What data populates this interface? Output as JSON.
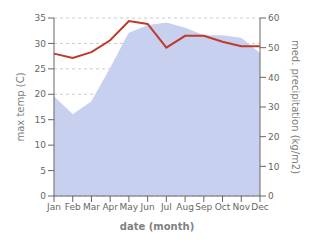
{
  "chart_data": {
    "type": "area",
    "xlabel": "date (month)",
    "ylabel": "max temp (C)",
    "y2label": "med. precipitation (kg/m2)",
    "categories": [
      "Jan",
      "Feb",
      "Mar",
      "Apr",
      "May",
      "Jun",
      "Jul",
      "Aug",
      "Sep",
      "Oct",
      "Nov",
      "Dec"
    ],
    "series": [
      {
        "type": "area",
        "color": "#c8d0f0",
        "values": [
          19.5,
          16.0,
          18.5,
          25.0,
          32.0,
          33.5,
          34.0,
          33.0,
          31.5,
          31.5,
          31.0,
          28.0
        ]
      },
      {
        "type": "line",
        "axis": "y2",
        "color": "#c0392b",
        "values": [
          48.0,
          46.5,
          48.5,
          52.5,
          59.0,
          58.0,
          50.0,
          54.0,
          54.0,
          52.0,
          50.5,
          50.5
        ]
      }
    ],
    "ylim": [
      0,
      35
    ],
    "yticks": [
      0,
      5,
      10,
      15,
      20,
      25,
      30,
      35
    ],
    "y2lim": [
      0,
      60
    ],
    "y2ticks": [
      0,
      10,
      20,
      30,
      40,
      50,
      60
    ],
    "grid": true
  }
}
